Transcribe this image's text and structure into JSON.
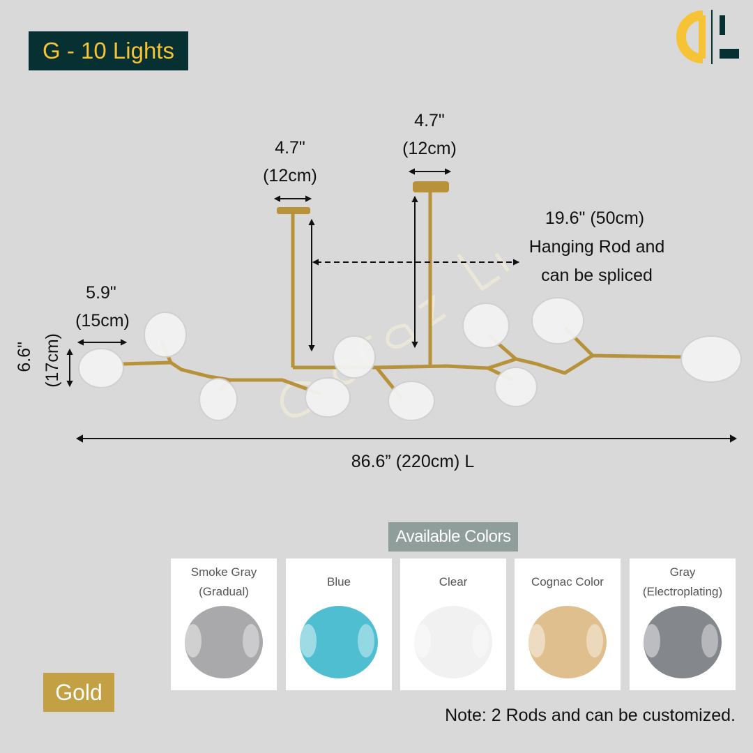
{
  "title": "G - 10 Lights",
  "logo": {
    "text": "Corazon Living",
    "colors": {
      "c": "#f5c335",
      "l": "#073033"
    }
  },
  "watermark": "Corazon Living",
  "dimensions": {
    "canopy_left": {
      "inch": "4.7\"",
      "cm": "(12cm)"
    },
    "canopy_right": {
      "inch": "4.7\"",
      "cm": "(12cm)"
    },
    "rod": {
      "line1": "19.6\" (50cm)",
      "line2": "Hanging Rod and",
      "line3": "can be spliced"
    },
    "globe_width": {
      "inch": "5.9\"",
      "cm": "(15cm)"
    },
    "globe_height": {
      "inch": "6.6\"",
      "cm": "(17cm)"
    },
    "length": "86.6” (220cm) L"
  },
  "available_colors": {
    "heading": "Available Colors",
    "options": [
      {
        "label1": "Smoke Gray",
        "label2": "(Gradual)",
        "color": "#9a9a9e"
      },
      {
        "label1": "Blue",
        "label2": "",
        "color": "#2fb3c8"
      },
      {
        "label1": "Clear",
        "label2": "",
        "color": "#eeeeee"
      },
      {
        "label1": "Cognac Color",
        "label2": "",
        "color": "#d9b47a"
      },
      {
        "label1": "Gray",
        "label2": "(Electroplating)",
        "color": "#6f7378"
      }
    ]
  },
  "finish": {
    "label": "Gold",
    "color": "#c2a043"
  },
  "note": "Note: 2 Rods and can be customized.",
  "colors": {
    "background": "#d9d9d9",
    "title_bg": "#073033",
    "title_text": "#f5c335",
    "metal": "#b8923a"
  }
}
